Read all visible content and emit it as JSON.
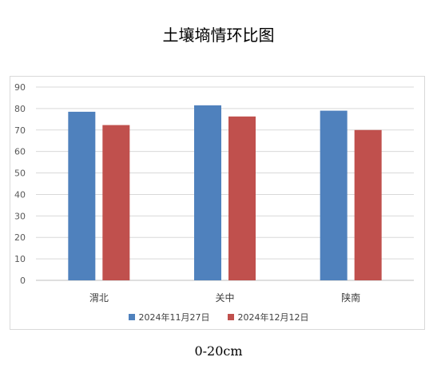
{
  "chart_data": {
    "type": "bar",
    "title": "土壤墒情环比图",
    "caption": "0-20cm",
    "categories": [
      "渭北",
      "关中",
      "陕南"
    ],
    "series": [
      {
        "name": "2024年11月27日",
        "color": "#4f81bd",
        "values": [
          78.5,
          81.5,
          79
        ]
      },
      {
        "name": "2024年12月12日",
        "color": "#c0504d",
        "values": [
          72.3,
          76.3,
          70
        ]
      }
    ],
    "ylim": [
      0,
      90
    ],
    "yticks": [
      0,
      10,
      20,
      30,
      40,
      50,
      60,
      70,
      80,
      90
    ],
    "grid": true,
    "legend": "bottom"
  }
}
